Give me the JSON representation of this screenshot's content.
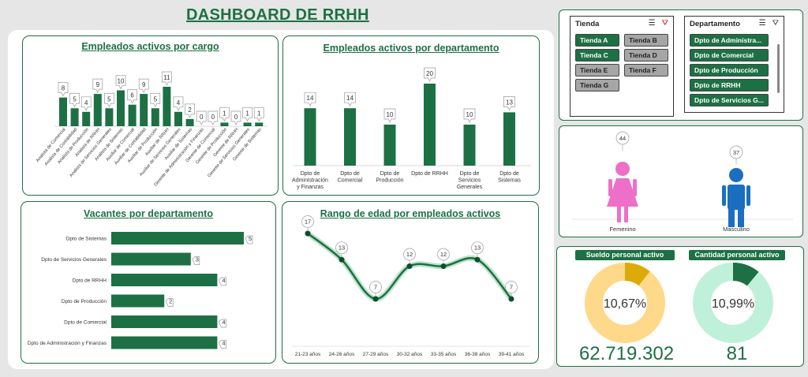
{
  "dashboard_title": "DASHBOARD DE RRHH",
  "colors": {
    "primary": "#1d7044",
    "female": "#ee6fc8",
    "male": "#1a6fc0",
    "salary_fill": "#ddaa07",
    "salary_rest": "#ffd98a",
    "headcount_rest": "#bff0d9"
  },
  "slicers": {
    "tienda": {
      "label": "Tienda",
      "icons": [
        "multi-select-icon",
        "clear-filter-icon"
      ],
      "items": [
        {
          "label": "Tienda A",
          "selected": true
        },
        {
          "label": "Tienda B",
          "selected": false
        },
        {
          "label": "Tienda C",
          "selected": true
        },
        {
          "label": "Tienda D",
          "selected": false
        },
        {
          "label": "Tienda E",
          "selected": false
        },
        {
          "label": "Tienda F",
          "selected": false
        },
        {
          "label": "Tienda G",
          "selected": false
        }
      ]
    },
    "departamento": {
      "label": "Departamento",
      "icons": [
        "multi-select-icon",
        "filter-icon"
      ],
      "items": [
        {
          "label": "Dpto de Administra...",
          "selected": true
        },
        {
          "label": "Dpto de Comercial",
          "selected": true
        },
        {
          "label": "Dpto de Producción",
          "selected": true
        },
        {
          "label": "Dpto de RRHH",
          "selected": true
        },
        {
          "label": "Dpto de Servicios G...",
          "selected": true
        }
      ]
    }
  },
  "gender": {
    "female": {
      "label": "Femenino",
      "value": 44
    },
    "male": {
      "label": "Masculino",
      "value": 37
    }
  },
  "kpis": {
    "salary": {
      "title": "Sueldo personal activo",
      "percent_label": "10,67%",
      "value": "62.719.302",
      "fraction": 0.1067
    },
    "headcount": {
      "title": "Cantidad personal activo",
      "percent_label": "10,99%",
      "value": "81",
      "fraction": 0.1099
    }
  },
  "chart_data": [
    {
      "type": "bar",
      "title": "Empleados activos por cargo",
      "categories": [
        "Analista de Comercial",
        "Analista de Contabilidad",
        "Analista de Producción",
        "Analista de RRHH",
        "Analista de Servicios Generales",
        "Analista de Sistemas",
        "Auxiliar de Comercial",
        "Auxiliar de Contabilidad",
        "Auxiliar de Producción",
        "Auxiliar de RRHH",
        "Auxiliar de Servicios Generales",
        "Auxiliar de Sistemas",
        "Gerente de Administración y Finanzas",
        "Gerente de Comercial",
        "Gerente de Producción",
        "Gerente de RRHH",
        "Gerente de Servicios Generales",
        "Gerente de Sistemas"
      ],
      "values": [
        8,
        5,
        4,
        9,
        5,
        10,
        6,
        9,
        5,
        11,
        4,
        2,
        0,
        0,
        1,
        0,
        1,
        1
      ],
      "ylim": [
        0,
        11
      ]
    },
    {
      "type": "bar",
      "title": "Empleados activos por departamento",
      "categories": [
        "Dpto de Administración y Finanzas",
        "Dpto de Comercial",
        "Dpto de Producción",
        "Dpto de RRHH",
        "Dpto de Servicios Generales",
        "Dpto de Sistemas"
      ],
      "values": [
        14,
        14,
        10,
        20,
        10,
        13
      ],
      "ylim": [
        0,
        20
      ]
    },
    {
      "type": "bar",
      "orientation": "horizontal",
      "title": "Vacantes por departamento",
      "categories": [
        "Dpto de Sistemas",
        "Dpto de Servicios Generales",
        "Dpto de RRHH",
        "Dpto de Producción",
        "Dpto de Comercial",
        "Dpto de Administración y Finanzas"
      ],
      "values": [
        5,
        3,
        4,
        2,
        4,
        4
      ],
      "xlim": [
        0,
        5
      ]
    },
    {
      "type": "line",
      "title": "Rango de edad por empleados activos",
      "categories": [
        "21-23 años",
        "24-26 años",
        "27-29 años",
        "30-32 años",
        "33-35 años",
        "36-38 años",
        "39-41 años"
      ],
      "values": [
        17,
        13,
        7,
        12,
        12,
        13,
        7
      ],
      "ylim": [
        0,
        20
      ]
    }
  ]
}
